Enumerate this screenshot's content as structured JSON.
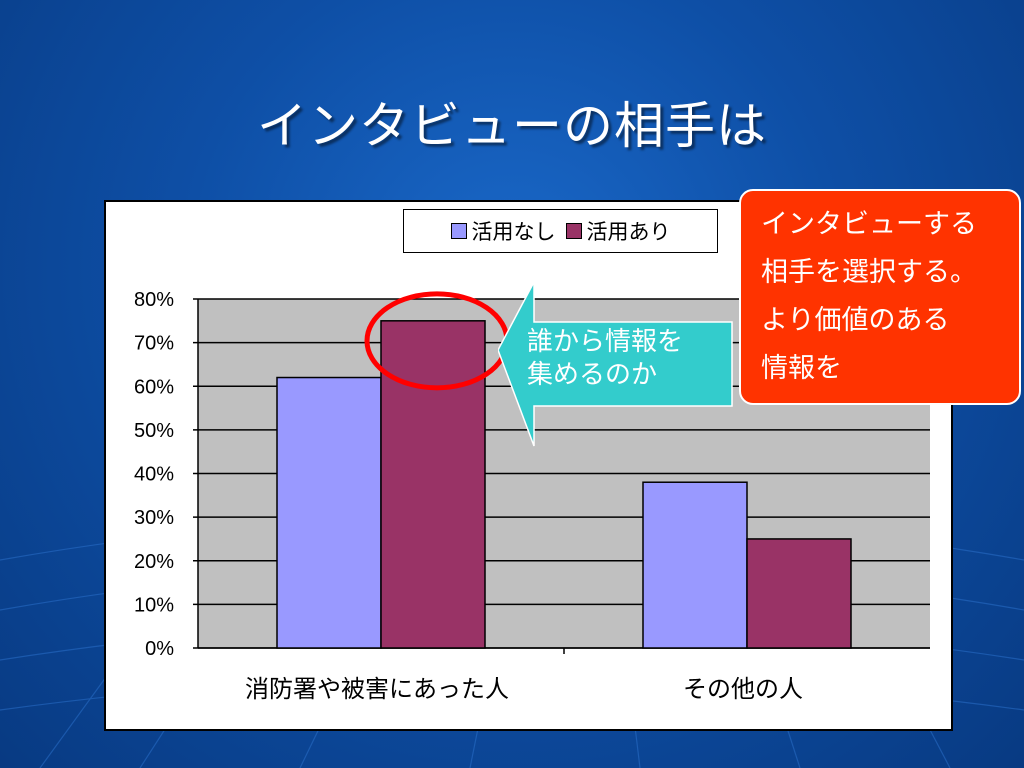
{
  "slide": {
    "title": "インタビューの相手は"
  },
  "callout": {
    "text": "誰から情報を\n集めるのか"
  },
  "note": {
    "text": "インタビューする\n相手を選択する。\nより価値のある\n情報を"
  },
  "colors": {
    "background": "#0e4fa6",
    "plot_area": "#c0c0c0",
    "series1": "#9999ff",
    "series2": "#993366",
    "callout_fill": "#33cccc",
    "note_fill": "#ff3300",
    "highlight_ring": "#ff0000"
  },
  "chart_data": {
    "type": "bar",
    "categories": [
      "消防署や被害にあった人",
      "その他の人"
    ],
    "series": [
      {
        "name": "活用なし",
        "values": [
          62,
          38
        ],
        "color": "#9999ff"
      },
      {
        "name": "活用あり",
        "values": [
          75,
          25
        ],
        "color": "#993366"
      }
    ],
    "yticks": [
      "0%",
      "10%",
      "20%",
      "30%",
      "40%",
      "50%",
      "60%",
      "70%",
      "80%"
    ],
    "ylim": [
      0,
      80
    ],
    "unit": "%",
    "grid": true,
    "legend_position": "top",
    "highlight": {
      "category": "消防署や被害にあった人",
      "series": "活用あり"
    }
  }
}
